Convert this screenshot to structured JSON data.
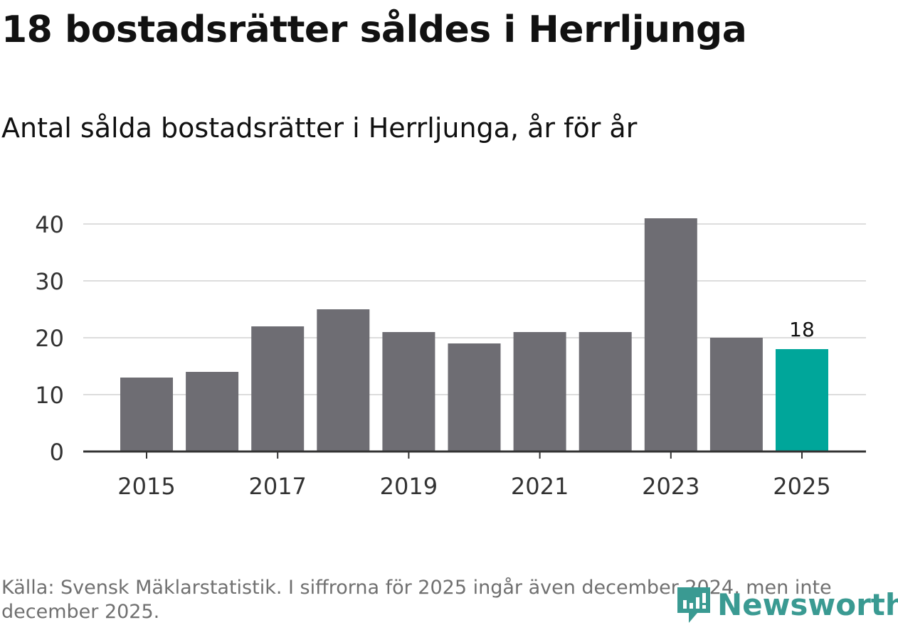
{
  "title": "18 bostadsrätter såldes i Herrljunga",
  "subtitle": "Antal sålda bostadsrätter i Herrljunga, år för år",
  "source": "Källa: Svensk Mäklarstatistik. I siffrorna för 2025 ingår även december 2024, men inte december 2025.",
  "logo": "Newsworthy",
  "colors": {
    "bar": "#6e6d73",
    "highlight": "#00a69a",
    "grid": "#dddddd",
    "axis": "#333333",
    "logo": "#3a9a92"
  },
  "chart_data": {
    "type": "bar",
    "title": "Antal sålda bostadsrätter i Herrljunga, år för år",
    "categories": [
      "2015",
      "2016",
      "2017",
      "2018",
      "2019",
      "2020",
      "2021",
      "2022",
      "2023",
      "2024",
      "2025"
    ],
    "values": [
      13,
      14,
      22,
      25,
      21,
      19,
      21,
      21,
      41,
      20,
      18
    ],
    "highlight_index": 10,
    "data_labels": [
      {
        "index": 10,
        "text": "18"
      }
    ],
    "x_tick_labels": [
      "2015",
      "2017",
      "2019",
      "2021",
      "2023",
      "2025"
    ],
    "y_ticks": [
      0,
      10,
      20,
      30,
      40
    ],
    "ylim": [
      0,
      42
    ],
    "xlabel": "",
    "ylabel": "",
    "grid": true
  }
}
